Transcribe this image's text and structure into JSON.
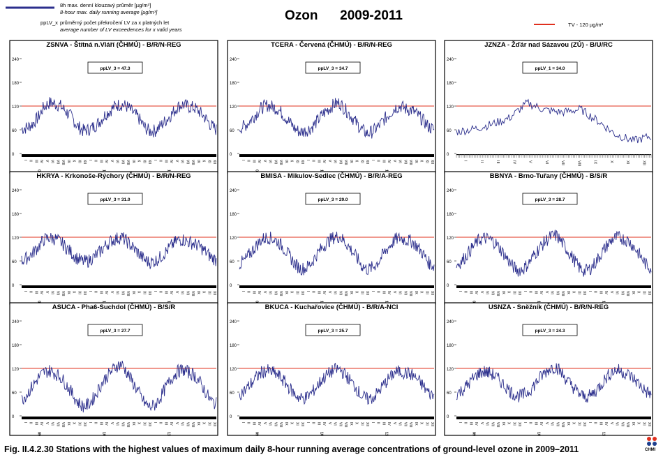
{
  "legend": {
    "line_label_cz": "8h max. denní klouzavý průměr [µg/m³]",
    "line_label_en": "8-hour max. daily running average [µg/m³]",
    "pplv_key": "ppLV_x",
    "pplv_cz": "průměrný počet překročení LV za x platných let",
    "pplv_en": "average number of LV exceedences for x valid years",
    "tv_label": "TV - 120 µg/m³",
    "line_color": "#2b2e8c",
    "tv_color": "#e0301e"
  },
  "title": "Ozon      2009-2011",
  "caption": "Fig. II.4.2.30  Stations with the highest values of maximum daily 8-hour running average concentrations of ground-level ozone in 2009–2011",
  "logo_text": "CHMI",
  "chart_data": [
    {
      "type": "line",
      "title": "ZSNVA - Štítná n.Vláří (ČHMÚ) - B/R/N-REG",
      "annotation": "ppLV_3 = 47.3",
      "ylim": [
        0,
        240
      ],
      "yticks": [
        0,
        60,
        120,
        180,
        240
      ],
      "threshold": 120,
      "period": "3y",
      "months": [
        "I",
        "II",
        "III",
        "IV",
        "V",
        "VI",
        "VII",
        "VIII",
        "IX",
        "X",
        "XI",
        "XII"
      ],
      "year_labels": [
        "09",
        "10",
        "11"
      ],
      "series": [
        {
          "values": [
            62,
            66,
            75,
            92,
            118,
            128,
            126,
            120,
            106,
            92,
            70,
            58,
            60,
            68,
            80,
            98,
            110,
            122,
            124,
            118,
            104,
            90,
            68,
            56,
            58,
            70,
            85,
            100,
            118,
            124,
            118,
            116,
            105,
            90,
            72,
            60
          ]
        }
      ]
    },
    {
      "type": "line",
      "title": "TCERA - Červená (ČHMÚ) - B/R/N-REG",
      "annotation": "ppLV_3 = 34.7",
      "ylim": [
        0,
        240
      ],
      "yticks": [
        0,
        60,
        120,
        180,
        240
      ],
      "threshold": 120,
      "period": "3y",
      "months": [
        "I",
        "II",
        "III",
        "IV",
        "V",
        "VI",
        "VII",
        "VIII",
        "IX",
        "X",
        "XI",
        "XII"
      ],
      "year_labels": [
        "09",
        "10",
        "11"
      ],
      "series": [
        {
          "values": [
            64,
            70,
            84,
            100,
            116,
            122,
            118,
            112,
            96,
            80,
            62,
            54,
            58,
            66,
            82,
            100,
            112,
            124,
            128,
            112,
            96,
            78,
            60,
            50,
            56,
            68,
            86,
            100,
            116,
            120,
            112,
            110,
            98,
            84,
            68,
            60
          ]
        }
      ]
    },
    {
      "type": "line",
      "title": "JZNZA - Žďár nad Sázavou (ZÚ) - B/U/RC",
      "annotation": "ppLV_1 = 34.0",
      "ylim": [
        0,
        240
      ],
      "yticks": [
        0,
        60,
        120,
        180,
        240
      ],
      "threshold": 120,
      "period": "1y",
      "months": [
        "I",
        "II",
        "III",
        "IV",
        "V",
        "VI",
        "VII",
        "VIII",
        "IX",
        "X",
        "XI",
        "XII"
      ],
      "year_labels": [],
      "series": [
        {
          "values": [
            55,
            62,
            74,
            90,
            128,
            110,
            104,
            112,
            82,
            48,
            32,
            44
          ]
        }
      ]
    },
    {
      "type": "line",
      "title": "HKRYA - Krkonoše-Rýchory (ČHMÚ) - B/R/N-REG",
      "annotation": "ppLV_3 = 31.0",
      "ylim": [
        0,
        240
      ],
      "yticks": [
        0,
        60,
        120,
        180,
        240
      ],
      "threshold": 120,
      "period": "3y",
      "months": [
        "I",
        "II",
        "III",
        "IV",
        "V",
        "VI",
        "VII",
        "VIII",
        "IX",
        "X",
        "XI",
        "XII"
      ],
      "year_labels": [
        "09",
        "10",
        "11"
      ],
      "series": [
        {
          "values": [
            60,
            68,
            80,
            96,
            114,
            118,
            116,
            108,
            94,
            80,
            66,
            58,
            60,
            70,
            82,
            98,
            110,
            116,
            120,
            108,
            94,
            80,
            64,
            56,
            60,
            70,
            84,
            100,
            112,
            114,
            108,
            104,
            96,
            84,
            70,
            62
          ]
        }
      ]
    },
    {
      "type": "line",
      "title": "BMISA - Mikulov-Sedlec (ČHMÚ) - B/R/A-REG",
      "annotation": "ppLV_3 = 29.0",
      "ylim": [
        0,
        240
      ],
      "yticks": [
        0,
        60,
        120,
        180,
        240
      ],
      "threshold": 120,
      "period": "3y",
      "months": [
        "I",
        "II",
        "III",
        "IV",
        "V",
        "VI",
        "VII",
        "VIII",
        "IX",
        "X",
        "XI",
        "XII"
      ],
      "year_labels": [
        "09",
        "10",
        "11"
      ],
      "series": [
        {
          "values": [
            52,
            62,
            80,
            98,
            114,
            120,
            116,
            108,
            92,
            72,
            52,
            40,
            42,
            56,
            78,
            96,
            110,
            120,
            122,
            108,
            90,
            70,
            48,
            38,
            44,
            58,
            80,
            98,
            114,
            118,
            112,
            110,
            96,
            78,
            56,
            46
          ]
        }
      ]
    },
    {
      "type": "line",
      "title": "BBNYA - Brno-Tuřany (ČHMÚ) - B/S/R",
      "annotation": "ppLV_3 = 28.7",
      "ylim": [
        0,
        240
      ],
      "yticks": [
        0,
        60,
        120,
        180,
        240
      ],
      "threshold": 120,
      "period": "3y",
      "months": [
        "I",
        "II",
        "III",
        "IV",
        "V",
        "VI",
        "VII",
        "VIII",
        "IX",
        "X",
        "XI",
        "XII"
      ],
      "year_labels": [
        "09",
        "10",
        "11"
      ],
      "series": [
        {
          "values": [
            50,
            60,
            78,
            96,
            112,
            118,
            114,
            106,
            88,
            68,
            48,
            36,
            40,
            54,
            76,
            94,
            110,
            122,
            124,
            106,
            86,
            66,
            44,
            34,
            40,
            56,
            78,
            98,
            114,
            120,
            116,
            110,
            94,
            74,
            52,
            42
          ]
        }
      ]
    },
    {
      "type": "line",
      "title": "ASUCA - Pha6-Suchdol (ČHMÚ) - B/S/R",
      "annotation": "ppLV_3 = 27.7",
      "ylim": [
        0,
        240
      ],
      "yticks": [
        0,
        60,
        120,
        180,
        240
      ],
      "threshold": 120,
      "period": "3y",
      "months": [
        "I",
        "II",
        "III",
        "IV",
        "V",
        "VI",
        "VII",
        "VIII",
        "IX",
        "X",
        "XI",
        "XII"
      ],
      "year_labels": [
        "09",
        "10",
        "11"
      ],
      "series": [
        {
          "values": [
            40,
            56,
            76,
            96,
            110,
            114,
            108,
            98,
            80,
            58,
            36,
            24,
            28,
            46,
            72,
            94,
            110,
            126,
            130,
            108,
            84,
            60,
            34,
            22,
            28,
            48,
            74,
            96,
            112,
            116,
            110,
            104,
            86,
            62,
            38,
            30
          ]
        }
      ]
    },
    {
      "type": "line",
      "title": "BKUCA - Kuchařovice (ČHMÚ) - B/R/A-NCI",
      "annotation": "ppLV_3 = 25.7",
      "ylim": [
        0,
        240
      ],
      "yticks": [
        0,
        60,
        120,
        180,
        240
      ],
      "threshold": 120,
      "period": "3y",
      "months": [
        "I",
        "II",
        "III",
        "IV",
        "V",
        "VI",
        "VII",
        "VIII",
        "IX",
        "X",
        "XI",
        "XII"
      ],
      "year_labels": [
        "09",
        "10",
        "11"
      ],
      "series": [
        {
          "values": [
            56,
            64,
            80,
            96,
            110,
            114,
            110,
            102,
            88,
            70,
            54,
            44,
            46,
            58,
            76,
            94,
            106,
            116,
            118,
            104,
            88,
            70,
            50,
            42,
            46,
            60,
            80,
            96,
            110,
            112,
            108,
            104,
            92,
            76,
            58,
            50
          ]
        }
      ]
    },
    {
      "type": "line",
      "title": "USNZA - Sněžník (ČHMÚ) - B/R/N-REG",
      "annotation": "ppLV_3 = 24.3",
      "ylim": [
        0,
        240
      ],
      "yticks": [
        0,
        60,
        120,
        180,
        240
      ],
      "threshold": 120,
      "period": "3y",
      "months": [
        "I",
        "II",
        "III",
        "IV",
        "V",
        "VI",
        "VII",
        "VIII",
        "IX",
        "X",
        "XI",
        "XII"
      ],
      "year_labels": [
        "09",
        "10",
        "11"
      ],
      "series": [
        {
          "values": [
            56,
            64,
            78,
            94,
            108,
            112,
            108,
            100,
            86,
            72,
            58,
            50,
            52,
            62,
            78,
            96,
            110,
            122,
            124,
            106,
            88,
            72,
            56,
            48,
            50,
            62,
            80,
            98,
            112,
            116,
            110,
            104,
            92,
            78,
            62,
            54
          ]
        }
      ]
    }
  ]
}
